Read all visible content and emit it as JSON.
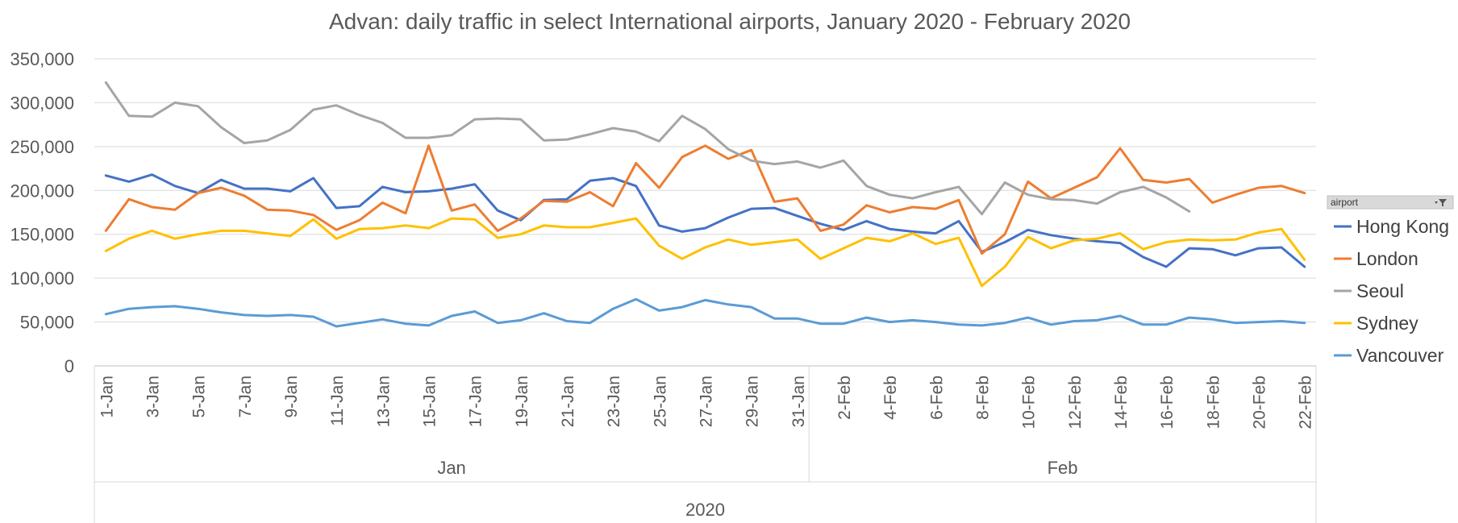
{
  "chart_data": {
    "type": "line",
    "title": "Advan: daily traffic in select International airports, January 2020 - February 2020",
    "xlabel": "",
    "ylabel": "",
    "ylim": [
      0,
      350000
    ],
    "yticks": [
      0,
      50000,
      100000,
      150000,
      200000,
      250000,
      300000,
      350000
    ],
    "ytick_labels": [
      "0",
      "50,000",
      "100,000",
      "150,000",
      "200,000",
      "250,000",
      "300,000",
      "350,000"
    ],
    "grid": true,
    "legend_position": "right",
    "legend_title": "airport",
    "categories": [
      "1-Jan",
      "2-Jan",
      "3-Jan",
      "4-Jan",
      "5-Jan",
      "6-Jan",
      "7-Jan",
      "8-Jan",
      "9-Jan",
      "10-Jan",
      "11-Jan",
      "12-Jan",
      "13-Jan",
      "14-Jan",
      "15-Jan",
      "16-Jan",
      "17-Jan",
      "18-Jan",
      "19-Jan",
      "20-Jan",
      "21-Jan",
      "22-Jan",
      "23-Jan",
      "24-Jan",
      "25-Jan",
      "26-Jan",
      "27-Jan",
      "28-Jan",
      "29-Jan",
      "30-Jan",
      "31-Jan",
      "1-Feb",
      "2-Feb",
      "3-Feb",
      "4-Feb",
      "5-Feb",
      "6-Feb",
      "7-Feb",
      "8-Feb",
      "9-Feb",
      "10-Feb",
      "11-Feb",
      "12-Feb",
      "13-Feb",
      "14-Feb",
      "15-Feb",
      "16-Feb",
      "17-Feb",
      "18-Feb",
      "19-Feb",
      "20-Feb",
      "21-Feb",
      "22-Feb"
    ],
    "visible_tick_labels": [
      "1-Jan",
      "3-Jan",
      "5-Jan",
      "7-Jan",
      "9-Jan",
      "11-Jan",
      "13-Jan",
      "15-Jan",
      "17-Jan",
      "19-Jan",
      "21-Jan",
      "23-Jan",
      "25-Jan",
      "27-Jan",
      "29-Jan",
      "31-Jan",
      "2-Feb",
      "4-Feb",
      "6-Feb",
      "8-Feb",
      "10-Feb",
      "12-Feb",
      "14-Feb",
      "16-Feb",
      "18-Feb",
      "20-Feb",
      "22-Feb"
    ],
    "month_groups": [
      {
        "label": "Jan",
        "start": "1-Jan",
        "end": "31-Jan"
      },
      {
        "label": "Feb",
        "start": "1-Feb",
        "end": "22-Feb"
      }
    ],
    "year_group": "2020",
    "series": [
      {
        "name": "Hong Kong",
        "color": "#4472C4",
        "values": [
          217000,
          210000,
          218000,
          205000,
          197000,
          212000,
          202000,
          202000,
          199000,
          214000,
          180000,
          182000,
          204000,
          198000,
          199000,
          202000,
          207000,
          177000,
          166000,
          189000,
          190000,
          211000,
          214000,
          205000,
          160000,
          153000,
          157000,
          169000,
          179000,
          180000,
          171000,
          162000,
          155000,
          165000,
          156000,
          153000,
          151000,
          165000,
          130000,
          141000,
          155000,
          149000,
          145000,
          142000,
          140000,
          124000,
          113000,
          134000,
          133000,
          126000,
          134000,
          135000,
          113000
        ]
      },
      {
        "name": "London",
        "color": "#ED7D31",
        "values": [
          154000,
          190000,
          181000,
          178000,
          197000,
          203000,
          194000,
          178000,
          177000,
          172000,
          155000,
          166000,
          186000,
          174000,
          251000,
          177000,
          184000,
          154000,
          168000,
          188000,
          187000,
          198000,
          182000,
          231000,
          203000,
          238000,
          251000,
          236000,
          246000,
          187000,
          191000,
          154000,
          161000,
          183000,
          175000,
          181000,
          179000,
          189000,
          128000,
          150000,
          210000,
          191000,
          203000,
          215000,
          248000,
          212000,
          209000,
          213000,
          186000,
          195000,
          203000,
          205000,
          197000
        ]
      },
      {
        "name": "Seoul",
        "color": "#A5A5A5",
        "values": [
          323000,
          285000,
          284000,
          300000,
          296000,
          272000,
          254000,
          257000,
          269000,
          292000,
          297000,
          286000,
          277000,
          260000,
          260000,
          263000,
          281000,
          282000,
          281000,
          257000,
          258000,
          264000,
          271000,
          267000,
          256000,
          285000,
          270000,
          247000,
          234000,
          230000,
          233000,
          226000,
          234000,
          205000,
          195000,
          191000,
          198000,
          204000,
          173000,
          209000,
          195000,
          190000,
          189000,
          185000,
          198000,
          204000,
          192000,
          176000,
          null,
          null,
          null,
          null,
          null
        ]
      },
      {
        "name": "Sydney",
        "color": "#FFC000",
        "values": [
          131000,
          145000,
          154000,
          145000,
          150000,
          154000,
          154000,
          151000,
          148000,
          167000,
          145000,
          156000,
          157000,
          160000,
          157000,
          168000,
          167000,
          146000,
          150000,
          160000,
          158000,
          158000,
          163000,
          168000,
          137000,
          122000,
          135000,
          144000,
          138000,
          141000,
          144000,
          122000,
          134000,
          146000,
          142000,
          151000,
          139000,
          146000,
          91000,
          113000,
          147000,
          134000,
          143000,
          145000,
          151000,
          133000,
          141000,
          144000,
          143000,
          144000,
          152000,
          156000,
          121000
        ]
      },
      {
        "name": "Vancouver",
        "color": "#5B9BD5",
        "values": [
          59000,
          65000,
          67000,
          68000,
          65000,
          61000,
          58000,
          57000,
          58000,
          56000,
          45000,
          49000,
          53000,
          48000,
          46000,
          57000,
          62000,
          49000,
          52000,
          60000,
          51000,
          49000,
          65000,
          76000,
          63000,
          67000,
          75000,
          70000,
          67000,
          54000,
          54000,
          48000,
          48000,
          55000,
          50000,
          52000,
          50000,
          47000,
          46000,
          49000,
          55000,
          47000,
          51000,
          52000,
          57000,
          47000,
          47000,
          55000,
          53000,
          49000,
          50000,
          51000,
          49000
        ]
      }
    ]
  }
}
